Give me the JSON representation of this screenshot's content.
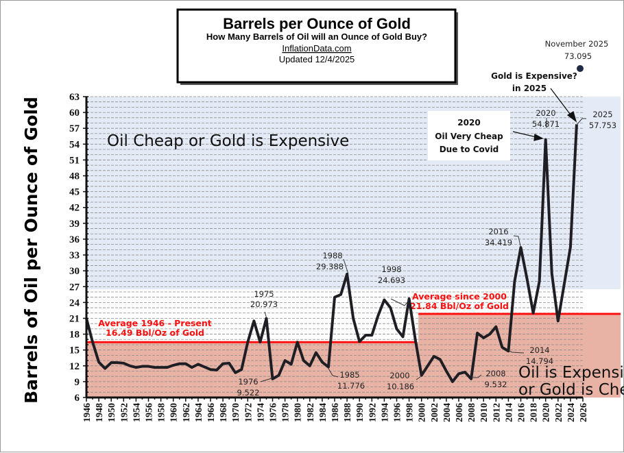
{
  "chart_data": {
    "type": "line",
    "title": "Barrels per Ounce of Gold",
    "subtitle": "How Many Barrels of Oil will an Ounce of Gold Buy?",
    "source": "InflationData.com",
    "updated": "Updated  12/4/2025",
    "ylabel": "Barrels of Oil per Ounce of Gold",
    "xlabel": "",
    "ylim": [
      6,
      63
    ],
    "xlim": [
      1946,
      2026
    ],
    "yticks": [
      6,
      9,
      12,
      15,
      18,
      21,
      24,
      27,
      30,
      33,
      36,
      39,
      42,
      45,
      48,
      51,
      54,
      57,
      60,
      63
    ],
    "xticks": [
      1946,
      1948,
      1950,
      1952,
      1954,
      1956,
      1958,
      1960,
      1962,
      1964,
      1966,
      1968,
      1970,
      1972,
      1974,
      1976,
      1978,
      1980,
      1982,
      1984,
      1986,
      1988,
      1990,
      1992,
      1994,
      1996,
      1998,
      2000,
      2002,
      2004,
      2006,
      2008,
      2010,
      2012,
      2014,
      2016,
      2018,
      2020,
      2022,
      2024,
      2026
    ],
    "grid": true,
    "x": [
      1946,
      1947,
      1948,
      1949,
      1950,
      1951,
      1952,
      1953,
      1954,
      1955,
      1956,
      1957,
      1958,
      1959,
      1960,
      1961,
      1962,
      1963,
      1964,
      1965,
      1966,
      1967,
      1968,
      1969,
      1970,
      1971,
      1972,
      1973,
      1974,
      1975,
      1976,
      1977,
      1978,
      1979,
      1980,
      1981,
      1982,
      1983,
      1984,
      1985,
      1986,
      1987,
      1988,
      1989,
      1990,
      1991,
      1992,
      1993,
      1994,
      1995,
      1996,
      1997,
      1998,
      1999,
      2000,
      2001,
      2002,
      2003,
      2004,
      2005,
      2006,
      2007,
      2008,
      2009,
      2010,
      2011,
      2012,
      2013,
      2014,
      2015,
      2016,
      2017,
      2018,
      2019,
      2020,
      2021,
      2022,
      2023,
      2024,
      2025
    ],
    "values": [
      21.0,
      16.5,
      12.7,
      11.5,
      12.6,
      12.6,
      12.5,
      12.0,
      11.7,
      11.9,
      11.9,
      11.7,
      11.7,
      11.7,
      12.1,
      12.4,
      12.4,
      11.7,
      12.3,
      11.8,
      11.3,
      11.2,
      12.4,
      12.5,
      10.7,
      11.3,
      16.5,
      20.5,
      16.5,
      20.973,
      9.522,
      10.2,
      13.0,
      12.3,
      16.5,
      13.0,
      12.0,
      14.5,
      12.7,
      11.776,
      25.0,
      25.5,
      29.388,
      21.0,
      16.6,
      17.8,
      17.8,
      21.5,
      24.5,
      23.0,
      19.0,
      17.5,
      24.693,
      17.0,
      10.186,
      12.0,
      13.8,
      13.2,
      11.0,
      9.0,
      10.5,
      10.8,
      9.532,
      18.2,
      17.3,
      18.0,
      19.4,
      15.5,
      14.794,
      28.0,
      34.419,
      28.5,
      22.0,
      28.0,
      54.871,
      29.5,
      20.5,
      27.5,
      34.5,
      57.753
    ],
    "line_color": "#1e1e24",
    "extra_point": {
      "label": "November 2025",
      "value": "73.095",
      "y": 73.095,
      "color": "#1f2a44"
    },
    "averages": [
      {
        "line1": "Average 1946 - Present",
        "line2": "16.49 Bbl/Oz of Gold",
        "value": 16.49,
        "from": 1946,
        "to": 1999
      },
      {
        "line1": "Average since 2000",
        "line2": "21.84 Bbl/Oz of Gold",
        "value": 21.84,
        "from": 1999.5,
        "to": 2026
      }
    ],
    "average_color": "#ff1010",
    "zones": {
      "upper": {
        "label": "Oil Cheap or Gold is Expensive",
        "color": "#e5ebf6",
        "from": 26.5
      },
      "lower": {
        "line1": "Oil is Expensive",
        "line2": "or Gold is Cheap",
        "color": "#e8b2a4"
      }
    },
    "annotations": {
      "a1975": {
        "year": "1975",
        "value": "20.973"
      },
      "a1976": {
        "year": "1976",
        "value": "9.522"
      },
      "a1985": {
        "year": "1985",
        "value": "11.776"
      },
      "a1988": {
        "year": "1988",
        "value": "29.388"
      },
      "a1998": {
        "year": "1998",
        "value": "24.693"
      },
      "a2000": {
        "year": "2000",
        "value": "10.186"
      },
      "a2008": {
        "year": "2008",
        "value": "9.532"
      },
      "a2014": {
        "year": "2014",
        "value": "14.794"
      },
      "a2016": {
        "year": "2016",
        "value": "34.419"
      },
      "a2020": {
        "year": "2020",
        "value": "54.871"
      },
      "a2025": {
        "year": "2025",
        "value": "57.753"
      },
      "covid": {
        "line1": "2020",
        "line2": "Oil Very Cheap",
        "line3": "Due to Covid"
      },
      "expensive": {
        "line1": "Gold is Expensive?",
        "line2": "in 2025"
      }
    }
  }
}
